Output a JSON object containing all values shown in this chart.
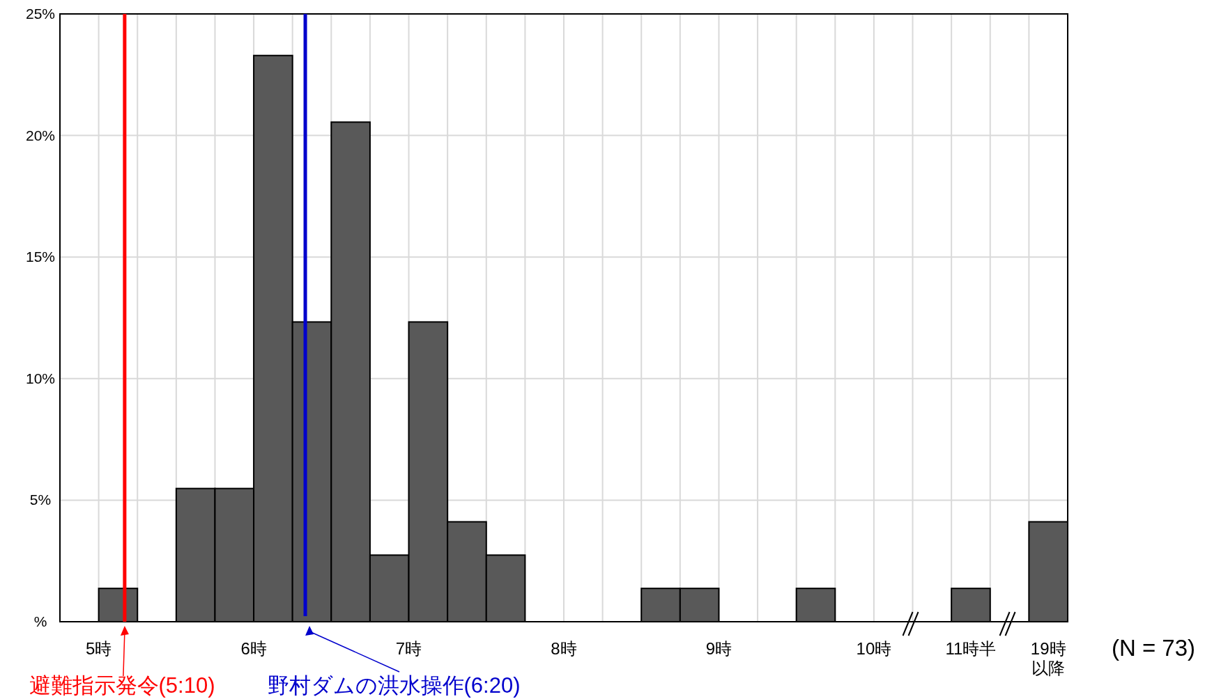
{
  "chart_data": {
    "type": "bar",
    "categories": [
      null,
      "5時",
      null,
      null,
      null,
      "6時",
      null,
      null,
      null,
      "7時",
      null,
      null,
      null,
      "8時",
      null,
      null,
      null,
      "9時",
      null,
      null,
      null,
      "10時",
      null,
      "11時半",
      null,
      "19時以降"
    ],
    "values": [
      0,
      1.37,
      0,
      5.48,
      5.48,
      23.29,
      12.33,
      20.55,
      2.74,
      12.33,
      4.11,
      2.74,
      0,
      0,
      0,
      1.37,
      1.37,
      0,
      0,
      1.37,
      0,
      0,
      0,
      1.37,
      0,
      4.11
    ],
    "color": "#595959",
    "ylim": [
      0,
      25
    ],
    "yticks": [
      {
        "value": 0,
        "label": "%"
      },
      {
        "value": 5,
        "label": "5%"
      },
      {
        "value": 10,
        "label": "10%"
      },
      {
        "value": 15,
        "label": "15%"
      },
      {
        "value": 20,
        "label": "20%"
      },
      {
        "value": 25,
        "label": "25%"
      }
    ],
    "grid": true,
    "annotations": [
      "(N = 73)",
      "避難指示発令(5:10)",
      "野村ダムの洪水操作(6:20)"
    ]
  }
}
